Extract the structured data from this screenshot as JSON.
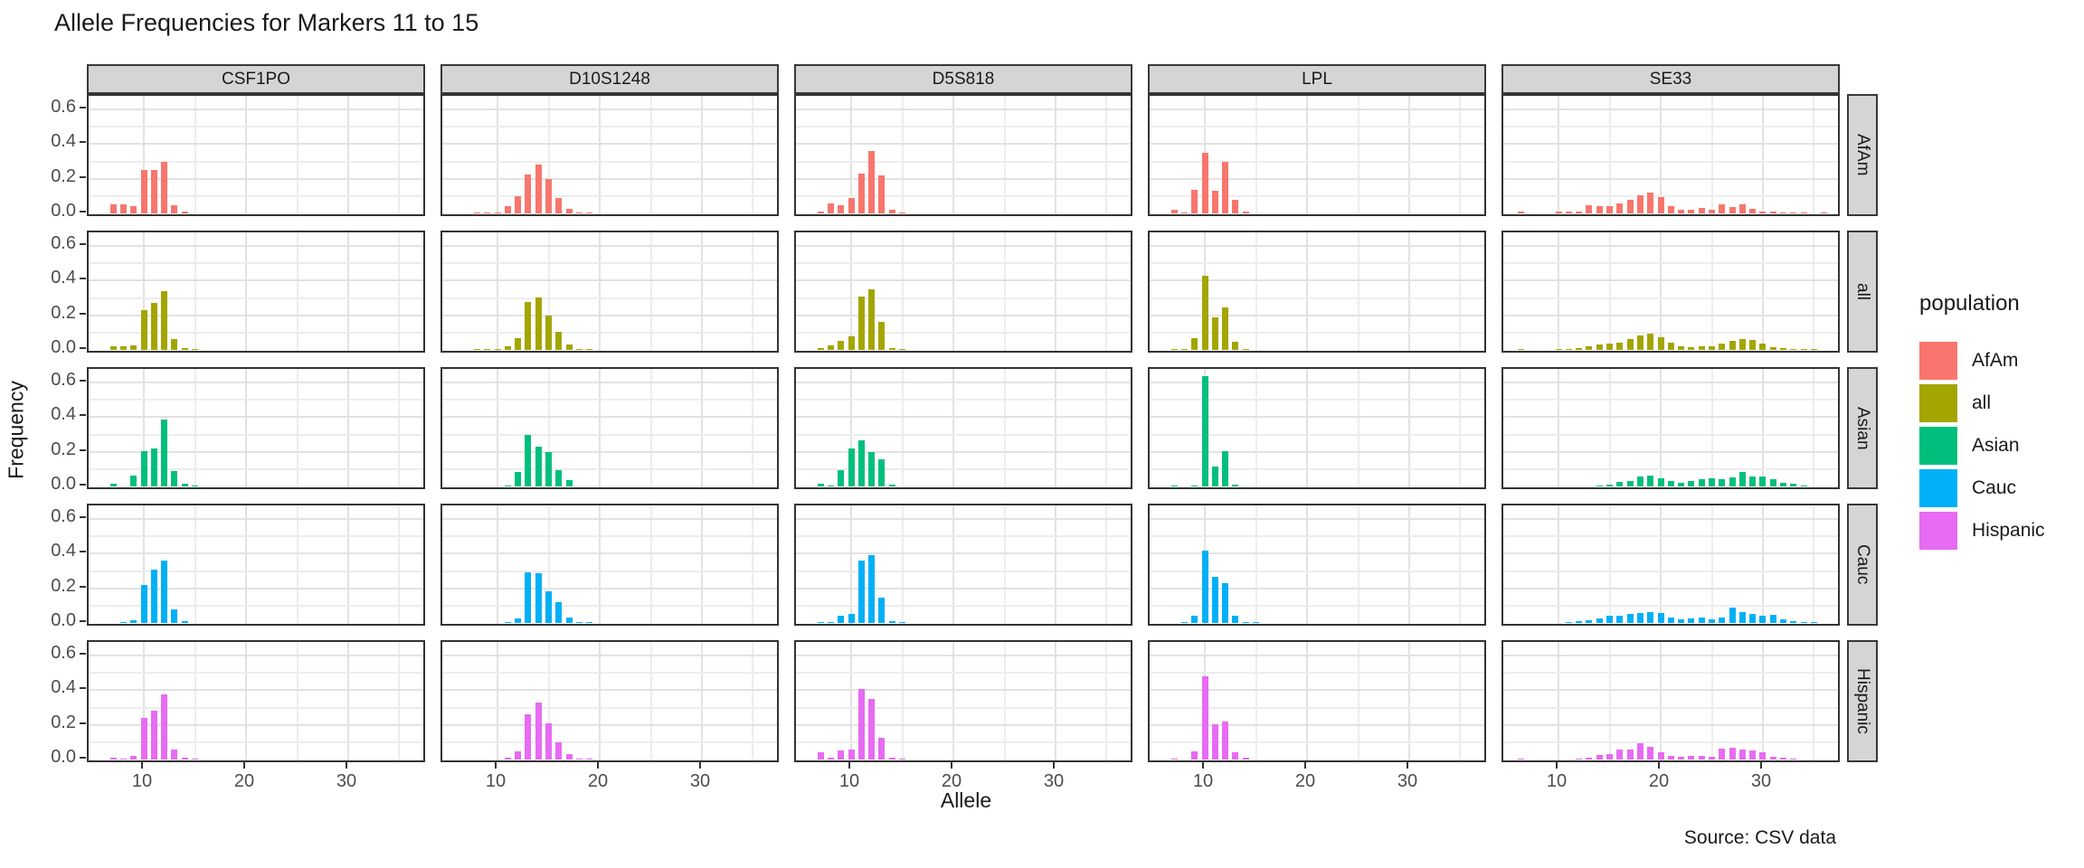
{
  "source_note": "Source: CSV data",
  "chart_data": {
    "type": "bar",
    "title": "Allele Frequencies for Markers 11 to 15",
    "xlabel": "Allele",
    "ylabel": "Frequency",
    "col_facets": [
      "CSF1PO",
      "D10S1248",
      "D5S818",
      "LPL",
      "SE33"
    ],
    "row_facets": [
      "AfAm",
      "all",
      "Asian",
      "Cauc",
      "Hispanic"
    ],
    "x_ticks": [
      10,
      20,
      30
    ],
    "x_minor_ticks": [
      15,
      25,
      35
    ],
    "y_ticks": [
      0.0,
      0.2,
      0.4,
      0.6
    ],
    "y_minor_ticks": [
      0.1,
      0.3,
      0.5
    ],
    "x_range": [
      4.6,
      37.7
    ],
    "y_range": [
      0,
      0.67
    ],
    "grid": true,
    "legend_position": "right",
    "legend": {
      "title": "population",
      "entries": [
        {
          "label": "AfAm",
          "color": "#F8766D"
        },
        {
          "label": "all",
          "color": "#A3A500"
        },
        {
          "label": "Asian",
          "color": "#00BF7D"
        },
        {
          "label": "Cauc",
          "color": "#00B0F6"
        },
        {
          "label": "Hispanic",
          "color": "#E76BF3"
        }
      ]
    },
    "panels": [
      {
        "marker": "CSF1PO",
        "population": "AfAm",
        "alleles": [
          7,
          8,
          9,
          10,
          11,
          12,
          13,
          14
        ],
        "freqs": [
          0.052,
          0.053,
          0.04,
          0.25,
          0.25,
          0.3,
          0.047,
          0.01
        ]
      },
      {
        "marker": "CSF1PO",
        "population": "all",
        "alleles": [
          7,
          8,
          9,
          10,
          11,
          12,
          13,
          14,
          15
        ],
        "freqs": [
          0.02,
          0.02,
          0.028,
          0.23,
          0.27,
          0.34,
          0.065,
          0.01,
          0.003
        ]
      },
      {
        "marker": "CSF1PO",
        "population": "Asian",
        "alleles": [
          7,
          9,
          10,
          11,
          12,
          13,
          14,
          15
        ],
        "freqs": [
          0.018,
          0.065,
          0.205,
          0.22,
          0.385,
          0.09,
          0.015,
          0.004
        ]
      },
      {
        "marker": "CSF1PO",
        "population": "Cauc",
        "alleles": [
          8,
          9,
          10,
          11,
          12,
          13,
          14
        ],
        "freqs": [
          0.005,
          0.015,
          0.22,
          0.31,
          0.36,
          0.08,
          0.012
        ]
      },
      {
        "marker": "CSF1PO",
        "population": "Hispanic",
        "alleles": [
          7,
          8,
          9,
          10,
          11,
          12,
          13,
          14,
          15
        ],
        "freqs": [
          0.011,
          0.005,
          0.022,
          0.24,
          0.28,
          0.375,
          0.06,
          0.011,
          0.004
        ]
      },
      {
        "marker": "D10S1248",
        "population": "AfAm",
        "alleles": [
          8,
          9,
          10,
          11,
          12,
          13,
          14,
          15,
          16,
          17,
          18,
          19
        ],
        "freqs": [
          0.004,
          0.004,
          0.006,
          0.04,
          0.1,
          0.225,
          0.28,
          0.2,
          0.09,
          0.026,
          0.005,
          0.003
        ]
      },
      {
        "marker": "D10S1248",
        "population": "all",
        "alleles": [
          8,
          9,
          10,
          11,
          12,
          13,
          14,
          15,
          16,
          17,
          18,
          19
        ],
        "freqs": [
          0.003,
          0.003,
          0.004,
          0.02,
          0.07,
          0.275,
          0.305,
          0.2,
          0.105,
          0.03,
          0.005,
          0.003
        ]
      },
      {
        "marker": "D10S1248",
        "population": "Asian",
        "alleles": [
          11,
          12,
          13,
          14,
          15,
          16,
          17
        ],
        "freqs": [
          0.006,
          0.085,
          0.3,
          0.23,
          0.2,
          0.095,
          0.035
        ]
      },
      {
        "marker": "D10S1248",
        "population": "Cauc",
        "alleles": [
          11,
          12,
          13,
          14,
          15,
          16,
          17,
          18,
          19
        ],
        "freqs": [
          0.005,
          0.025,
          0.29,
          0.285,
          0.185,
          0.12,
          0.03,
          0.006,
          0.005
        ]
      },
      {
        "marker": "D10S1248",
        "population": "Hispanic",
        "alleles": [
          11,
          12,
          13,
          14,
          15,
          16,
          17,
          18,
          19
        ],
        "freqs": [
          0.008,
          0.045,
          0.26,
          0.33,
          0.21,
          0.1,
          0.03,
          0.006,
          0.005
        ]
      },
      {
        "marker": "D5S818",
        "population": "AfAm",
        "alleles": [
          7,
          8,
          9,
          10,
          11,
          12,
          13,
          14,
          15
        ],
        "freqs": [
          0.01,
          0.055,
          0.045,
          0.09,
          0.23,
          0.36,
          0.22,
          0.02,
          0.005
        ]
      },
      {
        "marker": "D5S818",
        "population": "all",
        "alleles": [
          7,
          8,
          9,
          10,
          11,
          12,
          13,
          14,
          15
        ],
        "freqs": [
          0.01,
          0.025,
          0.05,
          0.08,
          0.31,
          0.35,
          0.16,
          0.012,
          0.004
        ]
      },
      {
        "marker": "D5S818",
        "population": "Asian",
        "alleles": [
          7,
          8,
          9,
          10,
          11,
          12,
          13,
          14
        ],
        "freqs": [
          0.015,
          0.005,
          0.095,
          0.22,
          0.265,
          0.2,
          0.155,
          0.012
        ]
      },
      {
        "marker": "D5S818",
        "population": "Cauc",
        "alleles": [
          7,
          8,
          9,
          10,
          11,
          12,
          13,
          14,
          15
        ],
        "freqs": [
          0.005,
          0.006,
          0.04,
          0.05,
          0.36,
          0.39,
          0.145,
          0.008,
          0.005
        ]
      },
      {
        "marker": "D5S818",
        "population": "Hispanic",
        "alleles": [
          7,
          8,
          9,
          10,
          11,
          12,
          13,
          14,
          15
        ],
        "freqs": [
          0.04,
          0.01,
          0.05,
          0.055,
          0.405,
          0.35,
          0.125,
          0.01,
          0.005
        ]
      },
      {
        "marker": "LPL",
        "population": "AfAm",
        "alleles": [
          7,
          8,
          9,
          10,
          11,
          12,
          13,
          14
        ],
        "freqs": [
          0.021,
          0.006,
          0.135,
          0.35,
          0.13,
          0.3,
          0.08,
          0.01
        ]
      },
      {
        "marker": "LPL",
        "population": "all",
        "alleles": [
          7,
          8,
          9,
          10,
          11,
          12,
          13,
          14
        ],
        "freqs": [
          0.006,
          0.004,
          0.07,
          0.43,
          0.19,
          0.245,
          0.045,
          0.006
        ]
      },
      {
        "marker": "LPL",
        "population": "Asian",
        "alleles": [
          7,
          9,
          10,
          11,
          12,
          13
        ],
        "freqs": [
          0.005,
          0.006,
          0.635,
          0.113,
          0.205,
          0.013
        ]
      },
      {
        "marker": "LPL",
        "population": "Cauc",
        "alleles": [
          8,
          9,
          10,
          11,
          12,
          13,
          14,
          15
        ],
        "freqs": [
          0.005,
          0.04,
          0.42,
          0.265,
          0.23,
          0.04,
          0.005,
          0.004
        ]
      },
      {
        "marker": "LPL",
        "population": "Hispanic",
        "alleles": [
          7,
          9,
          10,
          11,
          12,
          13,
          14
        ],
        "freqs": [
          0.005,
          0.045,
          0.48,
          0.205,
          0.22,
          0.04,
          0.01
        ]
      },
      {
        "marker": "SE33",
        "population": "AfAm",
        "alleles": [
          6.3,
          10,
          11,
          12,
          13,
          14,
          15,
          16,
          17,
          18,
          19,
          20,
          21,
          22,
          23,
          24,
          25,
          26,
          27,
          28,
          29,
          30,
          31,
          32,
          33,
          34,
          36
        ],
        "freqs": [
          0.01,
          0.009,
          0.009,
          0.012,
          0.045,
          0.04,
          0.04,
          0.06,
          0.08,
          0.105,
          0.122,
          0.095,
          0.04,
          0.02,
          0.022,
          0.033,
          0.019,
          0.05,
          0.037,
          0.05,
          0.026,
          0.012,
          0.012,
          0.007,
          0.005,
          0.005,
          0.005
        ]
      },
      {
        "marker": "SE33",
        "population": "all",
        "alleles": [
          6.3,
          10,
          11,
          12,
          13,
          14,
          15,
          16,
          17,
          18,
          19,
          20,
          21,
          22,
          23,
          24,
          25,
          26,
          27,
          28,
          29,
          30,
          31,
          32,
          33,
          34,
          35
        ],
        "freqs": [
          0.004,
          0.004,
          0.005,
          0.01,
          0.022,
          0.03,
          0.035,
          0.042,
          0.065,
          0.085,
          0.095,
          0.075,
          0.04,
          0.02,
          0.016,
          0.022,
          0.02,
          0.035,
          0.05,
          0.065,
          0.055,
          0.035,
          0.018,
          0.012,
          0.007,
          0.005,
          0.004
        ]
      },
      {
        "marker": "SE33",
        "population": "Asian",
        "alleles": [
          14,
          15,
          16,
          17,
          18,
          19,
          20,
          21,
          22,
          23,
          24,
          25,
          26,
          27,
          28,
          29,
          30,
          31,
          32,
          33,
          34
        ],
        "freqs": [
          0.005,
          0.01,
          0.025,
          0.03,
          0.055,
          0.065,
          0.045,
          0.03,
          0.02,
          0.03,
          0.04,
          0.045,
          0.04,
          0.05,
          0.085,
          0.06,
          0.055,
          0.04,
          0.02,
          0.015,
          0.006
        ]
      },
      {
        "marker": "SE33",
        "population": "Cauc",
        "alleles": [
          11,
          12,
          13,
          14,
          15,
          16,
          17,
          18,
          19,
          20,
          21,
          22,
          23,
          24,
          25,
          26,
          27,
          28,
          29,
          30,
          31,
          32,
          33,
          34,
          35
        ],
        "freqs": [
          0.004,
          0.008,
          0.015,
          0.025,
          0.04,
          0.04,
          0.05,
          0.06,
          0.065,
          0.055,
          0.03,
          0.02,
          0.025,
          0.03,
          0.02,
          0.03,
          0.09,
          0.065,
          0.05,
          0.04,
          0.045,
          0.02,
          0.01,
          0.005,
          0.004
        ]
      },
      {
        "marker": "SE33",
        "population": "Hispanic",
        "alleles": [
          6.3,
          12,
          13,
          14,
          15,
          16,
          17,
          18,
          19,
          20,
          21,
          22,
          23,
          24,
          25,
          26,
          27,
          28,
          29,
          30,
          31,
          32,
          33
        ],
        "freqs": [
          0.005,
          0.005,
          0.008,
          0.025,
          0.03,
          0.055,
          0.06,
          0.095,
          0.075,
          0.04,
          0.02,
          0.015,
          0.02,
          0.02,
          0.015,
          0.065,
          0.07,
          0.06,
          0.05,
          0.04,
          0.015,
          0.01,
          0.005
        ]
      }
    ]
  }
}
